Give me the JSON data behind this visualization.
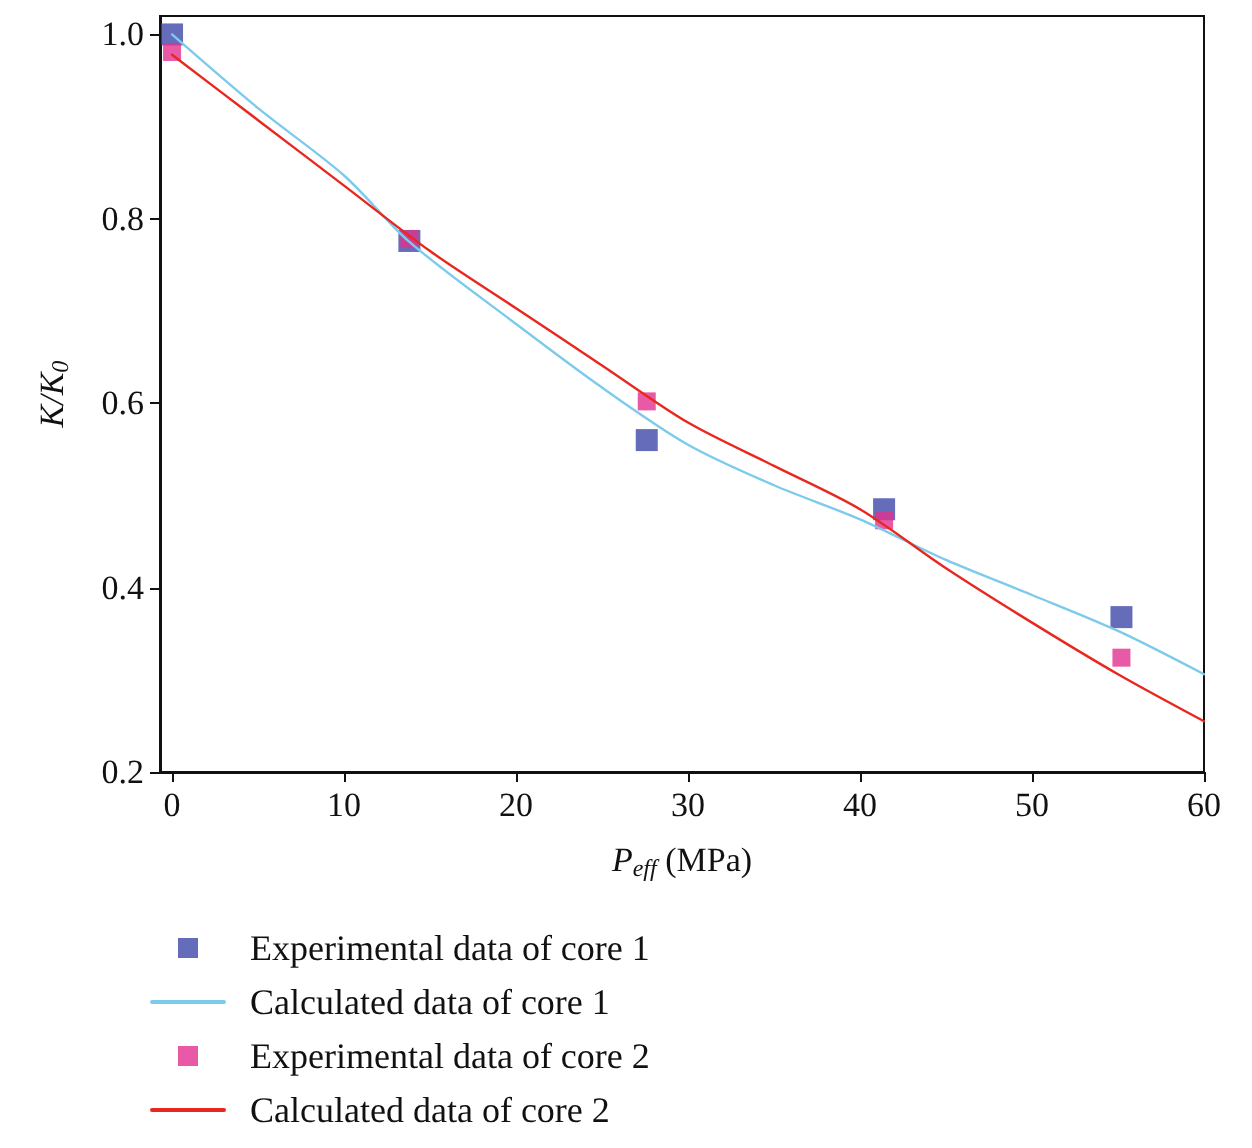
{
  "chart_data": {
    "type": "scatter",
    "xlabel": "P$_{eff}$ (MPa)",
    "ylabel": "K/K$_{0}$",
    "xlim": [
      -0.7,
      60
    ],
    "xticks": [
      0,
      10,
      20,
      30,
      40,
      50,
      60
    ],
    "ylim": [
      0.2,
      1.02
    ],
    "yticks": [
      0.2,
      0.4,
      0.6,
      0.8,
      {
        "value": 1,
        "label": "1.0"
      }
    ],
    "grid": false,
    "legend": "bottom",
    "marker": "square",
    "series": [
      {
        "name": "Experimental data of core 1",
        "color": "#3f48aa",
        "x": [
          0,
          13.8,
          27.6,
          41.4,
          55.2
        ],
        "values": [
          1.0,
          0.776,
          0.56,
          0.485,
          0.368
        ]
      },
      {
        "name": "Calculated data of core 1",
        "type": "line",
        "marker": "none",
        "color": "#7ccbea",
        "x": [
          0,
          5,
          10,
          13.8,
          20,
          25,
          30,
          35,
          40,
          45,
          50,
          55,
          60
        ],
        "values": [
          1.0,
          0.92,
          0.847,
          0.775,
          0.686,
          0.617,
          0.555,
          0.511,
          0.474,
          0.43,
          0.392,
          0.353,
          0.306
        ]
      },
      {
        "name": "Experimental data of core 2",
        "color": "#e2318f",
        "x": [
          0,
          13.8,
          27.6,
          41.4,
          55.2
        ],
        "values": [
          0.981,
          0.778,
          0.602,
          0.473,
          0.324
        ]
      },
      {
        "name": "Calculated data of core 2",
        "type": "line",
        "marker": "none",
        "color": "#e8281e",
        "x": [
          0,
          5,
          10,
          15,
          20,
          25,
          30,
          35,
          40,
          45,
          50,
          55,
          60
        ],
        "values": [
          0.978,
          0.907,
          0.836,
          0.765,
          0.703,
          0.641,
          0.579,
          0.532,
          0.485,
          0.421,
          0.362,
          0.306,
          0.255
        ]
      }
    ]
  }
}
